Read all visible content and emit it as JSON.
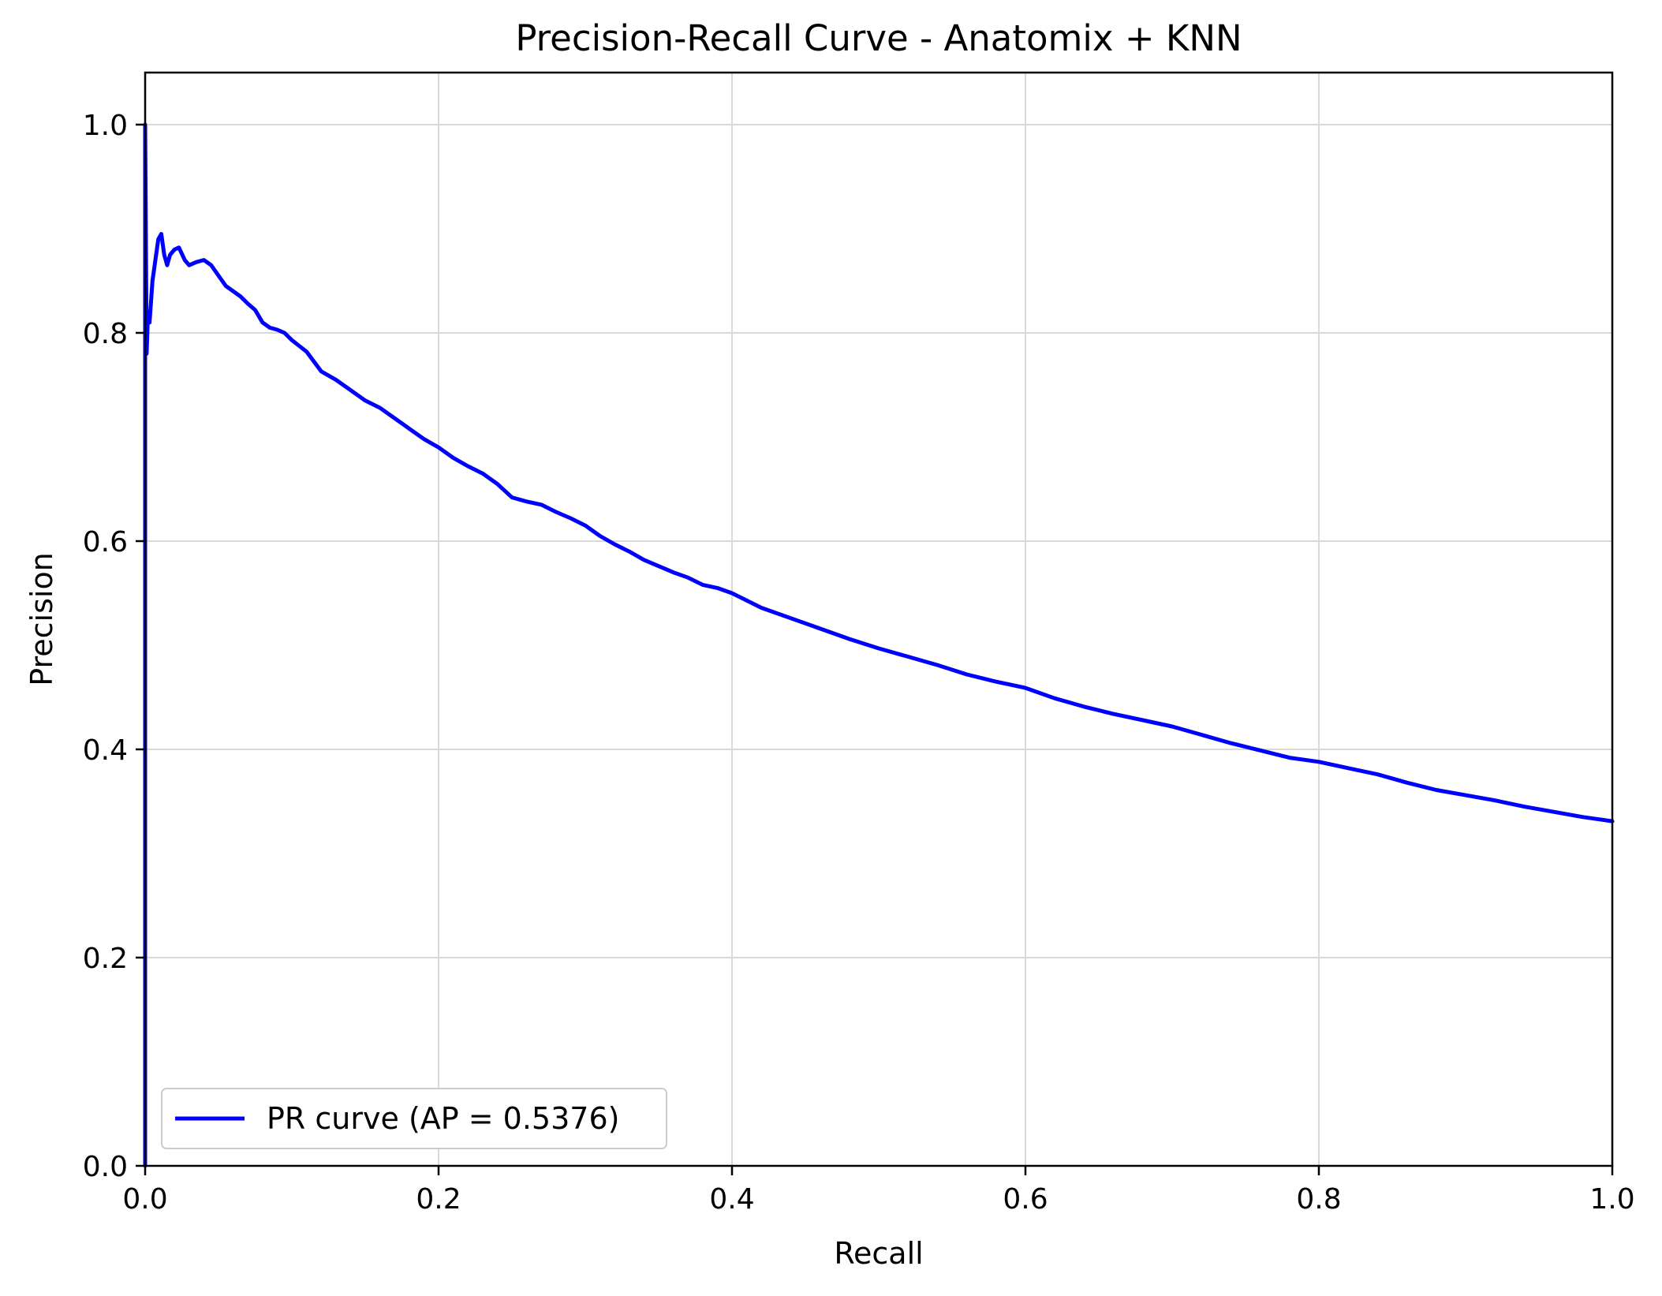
{
  "chart_data": {
    "type": "line",
    "title": "Precision-Recall Curve - Anatomix + KNN",
    "xlabel": "Recall",
    "ylabel": "Precision",
    "xlim": [
      0.0,
      1.0
    ],
    "ylim": [
      0.0,
      1.05
    ],
    "x_ticks": [
      "0.0",
      "0.2",
      "0.4",
      "0.6",
      "0.8",
      "1.0"
    ],
    "y_ticks": [
      "0.0",
      "0.2",
      "0.4",
      "0.6",
      "0.8",
      "1.0"
    ],
    "x_tick_values": [
      0.0,
      0.2,
      0.4,
      0.6,
      0.8,
      1.0
    ],
    "y_tick_values": [
      0.0,
      0.2,
      0.4,
      0.6,
      0.8,
      1.0
    ],
    "grid": true,
    "legend_position": "lower-left",
    "series": [
      {
        "name": "PR curve (AP = 0.5376)",
        "color": "#0000ff",
        "points": [
          [
            0.0,
            0.0
          ],
          [
            0.0,
            1.0
          ],
          [
            0.001,
            0.78
          ],
          [
            0.002,
            0.82
          ],
          [
            0.003,
            0.81
          ],
          [
            0.005,
            0.85
          ],
          [
            0.007,
            0.87
          ],
          [
            0.009,
            0.89
          ],
          [
            0.011,
            0.895
          ],
          [
            0.013,
            0.875
          ],
          [
            0.015,
            0.865
          ],
          [
            0.017,
            0.875
          ],
          [
            0.02,
            0.88
          ],
          [
            0.023,
            0.882
          ],
          [
            0.027,
            0.87
          ],
          [
            0.03,
            0.865
          ],
          [
            0.035,
            0.868
          ],
          [
            0.04,
            0.87
          ],
          [
            0.045,
            0.865
          ],
          [
            0.05,
            0.855
          ],
          [
            0.055,
            0.845
          ],
          [
            0.06,
            0.84
          ],
          [
            0.065,
            0.835
          ],
          [
            0.07,
            0.828
          ],
          [
            0.075,
            0.822
          ],
          [
            0.08,
            0.81
          ],
          [
            0.085,
            0.805
          ],
          [
            0.09,
            0.803
          ],
          [
            0.095,
            0.8
          ],
          [
            0.1,
            0.793
          ],
          [
            0.11,
            0.782
          ],
          [
            0.12,
            0.763
          ],
          [
            0.13,
            0.755
          ],
          [
            0.14,
            0.745
          ],
          [
            0.15,
            0.735
          ],
          [
            0.16,
            0.728
          ],
          [
            0.17,
            0.718
          ],
          [
            0.18,
            0.708
          ],
          [
            0.19,
            0.698
          ],
          [
            0.2,
            0.69
          ],
          [
            0.21,
            0.68
          ],
          [
            0.22,
            0.672
          ],
          [
            0.23,
            0.665
          ],
          [
            0.24,
            0.655
          ],
          [
            0.25,
            0.642
          ],
          [
            0.26,
            0.638
          ],
          [
            0.27,
            0.635
          ],
          [
            0.28,
            0.628
          ],
          [
            0.29,
            0.622
          ],
          [
            0.3,
            0.615
          ],
          [
            0.31,
            0.605
          ],
          [
            0.32,
            0.597
          ],
          [
            0.33,
            0.59
          ],
          [
            0.34,
            0.582
          ],
          [
            0.35,
            0.576
          ],
          [
            0.36,
            0.57
          ],
          [
            0.37,
            0.565
          ],
          [
            0.38,
            0.558
          ],
          [
            0.39,
            0.555
          ],
          [
            0.4,
            0.55
          ],
          [
            0.42,
            0.536
          ],
          [
            0.44,
            0.526
          ],
          [
            0.46,
            0.516
          ],
          [
            0.48,
            0.506
          ],
          [
            0.5,
            0.497
          ],
          [
            0.52,
            0.489
          ],
          [
            0.54,
            0.481
          ],
          [
            0.56,
            0.472
          ],
          [
            0.58,
            0.465
          ],
          [
            0.6,
            0.459
          ],
          [
            0.62,
            0.449
          ],
          [
            0.64,
            0.441
          ],
          [
            0.66,
            0.434
          ],
          [
            0.68,
            0.428
          ],
          [
            0.7,
            0.422
          ],
          [
            0.72,
            0.414
          ],
          [
            0.74,
            0.406
          ],
          [
            0.76,
            0.399
          ],
          [
            0.78,
            0.392
          ],
          [
            0.8,
            0.388
          ],
          [
            0.82,
            0.382
          ],
          [
            0.84,
            0.376
          ],
          [
            0.86,
            0.368
          ],
          [
            0.88,
            0.361
          ],
          [
            0.9,
            0.356
          ],
          [
            0.92,
            0.351
          ],
          [
            0.94,
            0.345
          ],
          [
            0.96,
            0.34
          ],
          [
            0.98,
            0.335
          ],
          [
            1.0,
            0.331
          ]
        ]
      }
    ]
  }
}
